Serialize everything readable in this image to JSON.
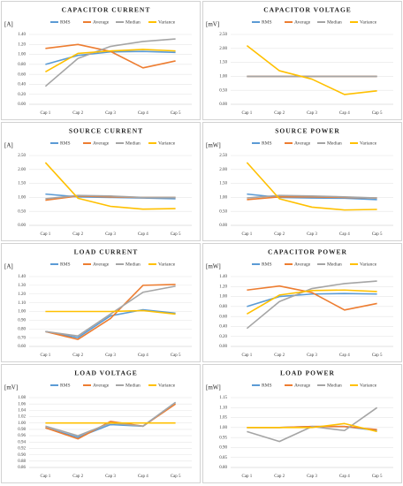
{
  "chart_data": [
    {
      "type": "line",
      "title": "CAPACITOR CURRENT",
      "y_label": "[A]",
      "grid": true,
      "legend": "top",
      "categories": [
        "Cap 1",
        "Cap 2",
        "Cap 3",
        "Cap 4",
        "Cap 5"
      ],
      "ylim": [
        0,
        1.4
      ],
      "yticks": [
        {
          "value": 0,
          "label": "0.00"
        },
        {
          "value": 0.2,
          "label": "0.20"
        },
        {
          "value": 0.4,
          "label": "0.40"
        },
        {
          "value": 0.6,
          "label": "0.60"
        },
        {
          "value": 0.8,
          "label": "0.80"
        },
        {
          "value": 1.0,
          "label": "1.00"
        },
        {
          "value": 1.2,
          "label": "1.20"
        },
        {
          "value": 1.4,
          "label": "1.40"
        }
      ],
      "series": [
        {
          "name": "RMS",
          "color": "#5b9bd5",
          "values": [
            0.8,
            0.98,
            1.05,
            1.06,
            1.04
          ]
        },
        {
          "name": "Average",
          "color": "#ed7d31",
          "values": [
            1.12,
            1.2,
            1.06,
            0.73,
            0.87
          ]
        },
        {
          "name": "Median",
          "color": "#a5a5a5",
          "values": [
            0.36,
            0.92,
            1.16,
            1.26,
            1.31
          ]
        },
        {
          "name": "Variance",
          "color": "#ffc000",
          "values": [
            0.65,
            1.02,
            1.07,
            1.1,
            1.07
          ]
        }
      ]
    },
    {
      "type": "line",
      "title": "CAPACITOR VOLTAGE",
      "y_label": "[mV]",
      "grid": true,
      "legend": "top",
      "categories": [
        "Cap 1",
        "Cap 2",
        "Cap 3",
        "Cap 4",
        "Cap 5"
      ],
      "ylim": [
        0,
        2.5
      ],
      "yticks": [
        {
          "value": 0,
          "label": "0.00"
        },
        {
          "value": 0.5,
          "label": "0.50"
        },
        {
          "value": 1.0,
          "label": "1.00"
        },
        {
          "value": 1.5,
          "label": "1.50"
        },
        {
          "value": 2.0,
          "label": "2.00"
        },
        {
          "value": 2.5,
          "label": "2.50"
        }
      ],
      "series": [
        {
          "name": "RMS",
          "color": "#5b9bd5",
          "values": [
            1.0,
            1.0,
            1.0,
            1.0,
            1.0
          ]
        },
        {
          "name": "Average",
          "color": "#ed7d31",
          "values": [
            1.0,
            1.0,
            1.0,
            1.0,
            1.0
          ]
        },
        {
          "name": "Median",
          "color": "#a5a5a5",
          "values": [
            1.0,
            1.0,
            1.0,
            1.0,
            1.0
          ]
        },
        {
          "name": "Variance",
          "color": "#ffc000",
          "values": [
            2.1,
            1.2,
            0.9,
            0.35,
            0.48
          ]
        }
      ]
    },
    {
      "type": "line",
      "title": "SOURCE CURRENT",
      "y_label": "[A]",
      "grid": true,
      "legend": "top",
      "categories": [
        "Cap 1",
        "Cap 2",
        "Cap 3",
        "Cap 4",
        "Cap 5"
      ],
      "ylim": [
        0,
        2.5
      ],
      "yticks": [
        {
          "value": 0,
          "label": "0.00"
        },
        {
          "value": 0.5,
          "label": "0.50"
        },
        {
          "value": 1.0,
          "label": "1.00"
        },
        {
          "value": 1.5,
          "label": "1.50"
        },
        {
          "value": 2.0,
          "label": "2.00"
        },
        {
          "value": 2.5,
          "label": "2.50"
        }
      ],
      "series": [
        {
          "name": "RMS",
          "color": "#5b9bd5",
          "values": [
            1.12,
            1.02,
            1.0,
            0.98,
            0.95
          ]
        },
        {
          "name": "Average",
          "color": "#ed7d31",
          "values": [
            0.9,
            1.05,
            1.02,
            1.0,
            1.0
          ]
        },
        {
          "name": "Median",
          "color": "#a5a5a5",
          "values": [
            0.95,
            1.07,
            1.05,
            1.0,
            1.0
          ]
        },
        {
          "name": "Variance",
          "color": "#ffc000",
          "values": [
            2.25,
            0.97,
            0.68,
            0.58,
            0.6
          ]
        }
      ]
    },
    {
      "type": "line",
      "title": "SOURCE POWER",
      "y_label": "[mW]",
      "grid": true,
      "legend": "top",
      "categories": [
        "Cap 1",
        "Cap 2",
        "Cap 3",
        "Cap 4",
        "Cap 5"
      ],
      "ylim": [
        0,
        2.5
      ],
      "yticks": [
        {
          "value": 0,
          "label": "0.00"
        },
        {
          "value": 0.5,
          "label": "0.50"
        },
        {
          "value": 1.0,
          "label": "1.00"
        },
        {
          "value": 1.5,
          "label": "1.50"
        },
        {
          "value": 2.0,
          "label": "2.00"
        },
        {
          "value": 2.5,
          "label": "2.50"
        }
      ],
      "series": [
        {
          "name": "RMS",
          "color": "#5b9bd5",
          "values": [
            1.12,
            1.0,
            0.98,
            0.97,
            0.92
          ]
        },
        {
          "name": "Average",
          "color": "#ed7d31",
          "values": [
            0.92,
            1.02,
            1.02,
            1.0,
            0.98
          ]
        },
        {
          "name": "Median",
          "color": "#a5a5a5",
          "values": [
            0.98,
            1.07,
            1.05,
            1.02,
            0.98
          ]
        },
        {
          "name": "Variance",
          "color": "#ffc000",
          "values": [
            2.25,
            0.95,
            0.65,
            0.55,
            0.57
          ]
        }
      ]
    },
    {
      "type": "line",
      "title": "LOAD CURRENT",
      "y_label": "[A]",
      "grid": true,
      "legend": "top",
      "categories": [
        "Cap 1",
        "Cap 2",
        "Cap 3",
        "Cap 4",
        "Cap 5"
      ],
      "ylim": [
        0.6,
        1.4
      ],
      "yticks": [
        {
          "value": 0.6,
          "label": "0.60"
        },
        {
          "value": 0.7,
          "label": "0.70"
        },
        {
          "value": 0.8,
          "label": "0.80"
        },
        {
          "value": 0.9,
          "label": "0.90"
        },
        {
          "value": 1.0,
          "label": "1.00"
        },
        {
          "value": 1.1,
          "label": "1.10"
        },
        {
          "value": 1.2,
          "label": "1.20"
        },
        {
          "value": 1.3,
          "label": "1.30"
        },
        {
          "value": 1.4,
          "label": "1.40"
        }
      ],
      "series": [
        {
          "name": "RMS",
          "color": "#5b9bd5",
          "values": [
            0.77,
            0.7,
            0.95,
            1.02,
            0.98
          ]
        },
        {
          "name": "Average",
          "color": "#ed7d31",
          "values": [
            0.77,
            0.68,
            0.92,
            1.3,
            1.31
          ]
        },
        {
          "name": "Median",
          "color": "#a5a5a5",
          "values": [
            0.77,
            0.72,
            0.97,
            1.22,
            1.29
          ]
        },
        {
          "name": "Variance",
          "color": "#ffc000",
          "values": [
            1.0,
            1.0,
            1.0,
            1.01,
            0.97
          ]
        }
      ]
    },
    {
      "type": "line",
      "title": "CAPACITOR POWER",
      "y_label": "[mW]",
      "grid": true,
      "legend": "top",
      "categories": [
        "Cap 1",
        "Cap 2",
        "Cap 3",
        "Cap 4",
        "Cap 5"
      ],
      "ylim": [
        0,
        1.4
      ],
      "yticks": [
        {
          "value": 0,
          "label": "0.00"
        },
        {
          "value": 0.2,
          "label": "0.20"
        },
        {
          "value": 0.4,
          "label": "0.40"
        },
        {
          "value": 0.6,
          "label": "0.60"
        },
        {
          "value": 0.8,
          "label": "0.80"
        },
        {
          "value": 1.0,
          "label": "1.00"
        },
        {
          "value": 1.2,
          "label": "1.20"
        },
        {
          "value": 1.4,
          "label": "1.40"
        }
      ],
      "series": [
        {
          "name": "RMS",
          "color": "#5b9bd5",
          "values": [
            0.8,
            1.0,
            1.05,
            1.06,
            1.05
          ]
        },
        {
          "name": "Average",
          "color": "#ed7d31",
          "values": [
            1.13,
            1.21,
            1.08,
            0.73,
            0.86
          ]
        },
        {
          "name": "Median",
          "color": "#a5a5a5",
          "values": [
            0.36,
            0.9,
            1.16,
            1.26,
            1.31
          ]
        },
        {
          "name": "Variance",
          "color": "#ffc000",
          "values": [
            0.65,
            1.03,
            1.12,
            1.13,
            1.1
          ]
        }
      ]
    },
    {
      "type": "line",
      "title": "LOAD VOLTAGE",
      "y_label": "[mV]",
      "grid": true,
      "legend": "top",
      "categories": [
        "Cap 1",
        "Cap 2",
        "Cap 3",
        "Cap 4",
        "Cap 5"
      ],
      "ylim": [
        0.86,
        1.08
      ],
      "yticks": [
        {
          "value": 0.86,
          "label": "0.86"
        },
        {
          "value": 0.88,
          "label": "0.88"
        },
        {
          "value": 0.9,
          "label": "0.90"
        },
        {
          "value": 0.92,
          "label": "0.92"
        },
        {
          "value": 0.94,
          "label": "0.94"
        },
        {
          "value": 0.96,
          "label": "0.96"
        },
        {
          "value": 0.98,
          "label": "0.98"
        },
        {
          "value": 1.0,
          "label": "1.00"
        },
        {
          "value": 1.02,
          "label": "1.02"
        },
        {
          "value": 1.04,
          "label": "1.04"
        },
        {
          "value": 1.06,
          "label": "1.06"
        },
        {
          "value": 1.08,
          "label": "1.08"
        }
      ],
      "series": [
        {
          "name": "RMS",
          "color": "#5b9bd5",
          "values": [
            0.985,
            0.955,
            0.995,
            0.99,
            1.065
          ]
        },
        {
          "name": "Average",
          "color": "#ed7d31",
          "values": [
            0.985,
            0.95,
            1.005,
            0.99,
            1.06
          ]
        },
        {
          "name": "Median",
          "color": "#a5a5a5",
          "values": [
            0.99,
            0.96,
            1.0,
            0.99,
            1.065
          ]
        },
        {
          "name": "Variance",
          "color": "#ffc000",
          "values": [
            1.0,
            1.0,
            1.0,
            1.0,
            1.0
          ]
        }
      ]
    },
    {
      "type": "line",
      "title": "LOAD POWER",
      "y_label": "[mW]",
      "grid": true,
      "legend": "top",
      "categories": [
        "Cap 1",
        "Cap 2",
        "Cap 3",
        "Cap 4",
        "Cap 5"
      ],
      "ylim": [
        0.8,
        1.15
      ],
      "yticks": [
        {
          "value": 0.8,
          "label": "0.80"
        },
        {
          "value": 0.85,
          "label": "0.85"
        },
        {
          "value": 0.9,
          "label": "0.90"
        },
        {
          "value": 0.95,
          "label": "0.95"
        },
        {
          "value": 1.0,
          "label": "1.00"
        },
        {
          "value": 1.05,
          "label": "1.05"
        },
        {
          "value": 1.1,
          "label": "1.10"
        },
        {
          "value": 1.15,
          "label": "1.15"
        }
      ],
      "series": [
        {
          "name": "RMS",
          "color": "#5b9bd5",
          "values": [
            1.0,
            1.0,
            1.005,
            1.005,
            0.985
          ]
        },
        {
          "name": "Average",
          "color": "#ed7d31",
          "values": [
            1.0,
            1.0,
            1.005,
            1.005,
            0.99
          ]
        },
        {
          "name": "Median",
          "color": "#a5a5a5",
          "values": [
            0.98,
            0.93,
            1.005,
            0.985,
            1.1
          ]
        },
        {
          "name": "Variance",
          "color": "#ffc000",
          "values": [
            1.0,
            1.0,
            1.0,
            1.02,
            0.98
          ]
        }
      ]
    }
  ]
}
